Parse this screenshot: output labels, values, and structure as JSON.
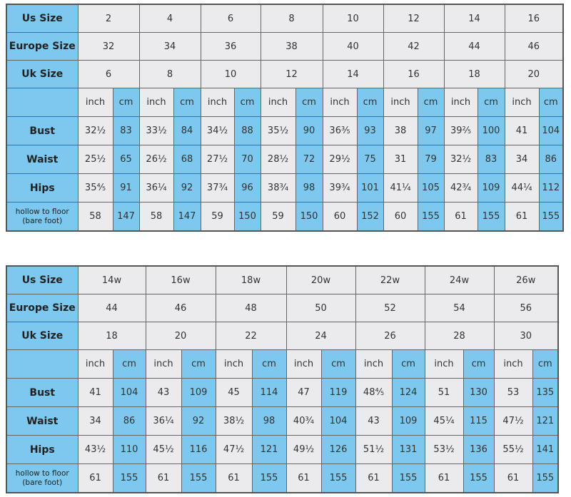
{
  "colors": {
    "blue": "#7cc8ef",
    "gray": "#ebebee"
  },
  "unit_labels": {
    "inch": "inch",
    "cm": "cm"
  },
  "row_labels": {
    "us": "Us Size",
    "europe": "Europe Size",
    "uk": "Uk Size",
    "bust": "Bust",
    "waist": "Waist",
    "hips": "Hips",
    "hollow": "hollow to floor (bare foot)"
  },
  "tables": [
    {
      "us": [
        "2",
        "4",
        "6",
        "8",
        "10",
        "12",
        "14",
        "16"
      ],
      "europe": [
        "32",
        "34",
        "36",
        "38",
        "40",
        "42",
        "44",
        "46"
      ],
      "uk": [
        "6",
        "8",
        "10",
        "12",
        "14",
        "16",
        "18",
        "20"
      ],
      "bust": [
        [
          "32½",
          "83"
        ],
        [
          "33½",
          "84"
        ],
        [
          "34½",
          "88"
        ],
        [
          "35½",
          "90"
        ],
        [
          "36⅗",
          "93"
        ],
        [
          "38",
          "97"
        ],
        [
          "39⅖",
          "100"
        ],
        [
          "41",
          "104"
        ]
      ],
      "waist": [
        [
          "25½",
          "65"
        ],
        [
          "26½",
          "68"
        ],
        [
          "27½",
          "70"
        ],
        [
          "28½",
          "72"
        ],
        [
          "29½",
          "75"
        ],
        [
          "31",
          "79"
        ],
        [
          "32½",
          "83"
        ],
        [
          "34",
          "86"
        ]
      ],
      "hips": [
        [
          "35⅘",
          "91"
        ],
        [
          "36¼",
          "92"
        ],
        [
          "37¾",
          "96"
        ],
        [
          "38¾",
          "98"
        ],
        [
          "39¾",
          "101"
        ],
        [
          "41¼",
          "105"
        ],
        [
          "42¾",
          "109"
        ],
        [
          "44¼",
          "112"
        ]
      ],
      "hollow": [
        [
          "58",
          "147"
        ],
        [
          "58",
          "147"
        ],
        [
          "59",
          "150"
        ],
        [
          "59",
          "150"
        ],
        [
          "60",
          "152"
        ],
        [
          "60",
          "155"
        ],
        [
          "61",
          "155"
        ],
        [
          "61",
          "155"
        ]
      ]
    },
    {
      "us": [
        "14w",
        "16w",
        "18w",
        "20w",
        "22w",
        "24w",
        "26w"
      ],
      "europe": [
        "44",
        "46",
        "48",
        "50",
        "52",
        "54",
        "56"
      ],
      "uk": [
        "18",
        "20",
        "22",
        "24",
        "26",
        "28",
        "30"
      ],
      "bust": [
        [
          "41",
          "104"
        ],
        [
          "43",
          "109"
        ],
        [
          "45",
          "114"
        ],
        [
          "47",
          "119"
        ],
        [
          "48⅘",
          "124"
        ],
        [
          "51",
          "130"
        ],
        [
          "53",
          "135"
        ]
      ],
      "waist": [
        [
          "34",
          "86"
        ],
        [
          "36¼",
          "92"
        ],
        [
          "38½",
          "98"
        ],
        [
          "40¾",
          "104"
        ],
        [
          "43",
          "109"
        ],
        [
          "45¼",
          "115"
        ],
        [
          "47½",
          "121"
        ]
      ],
      "hips": [
        [
          "43½",
          "110"
        ],
        [
          "45½",
          "116"
        ],
        [
          "47½",
          "121"
        ],
        [
          "49½",
          "126"
        ],
        [
          "51½",
          "131"
        ],
        [
          "53½",
          "136"
        ],
        [
          "55½",
          "141"
        ]
      ],
      "hollow": [
        [
          "61",
          "155"
        ],
        [
          "61",
          "155"
        ],
        [
          "61",
          "155"
        ],
        [
          "61",
          "155"
        ],
        [
          "61",
          "155"
        ],
        [
          "61",
          "155"
        ],
        [
          "61",
          "155"
        ]
      ]
    }
  ]
}
